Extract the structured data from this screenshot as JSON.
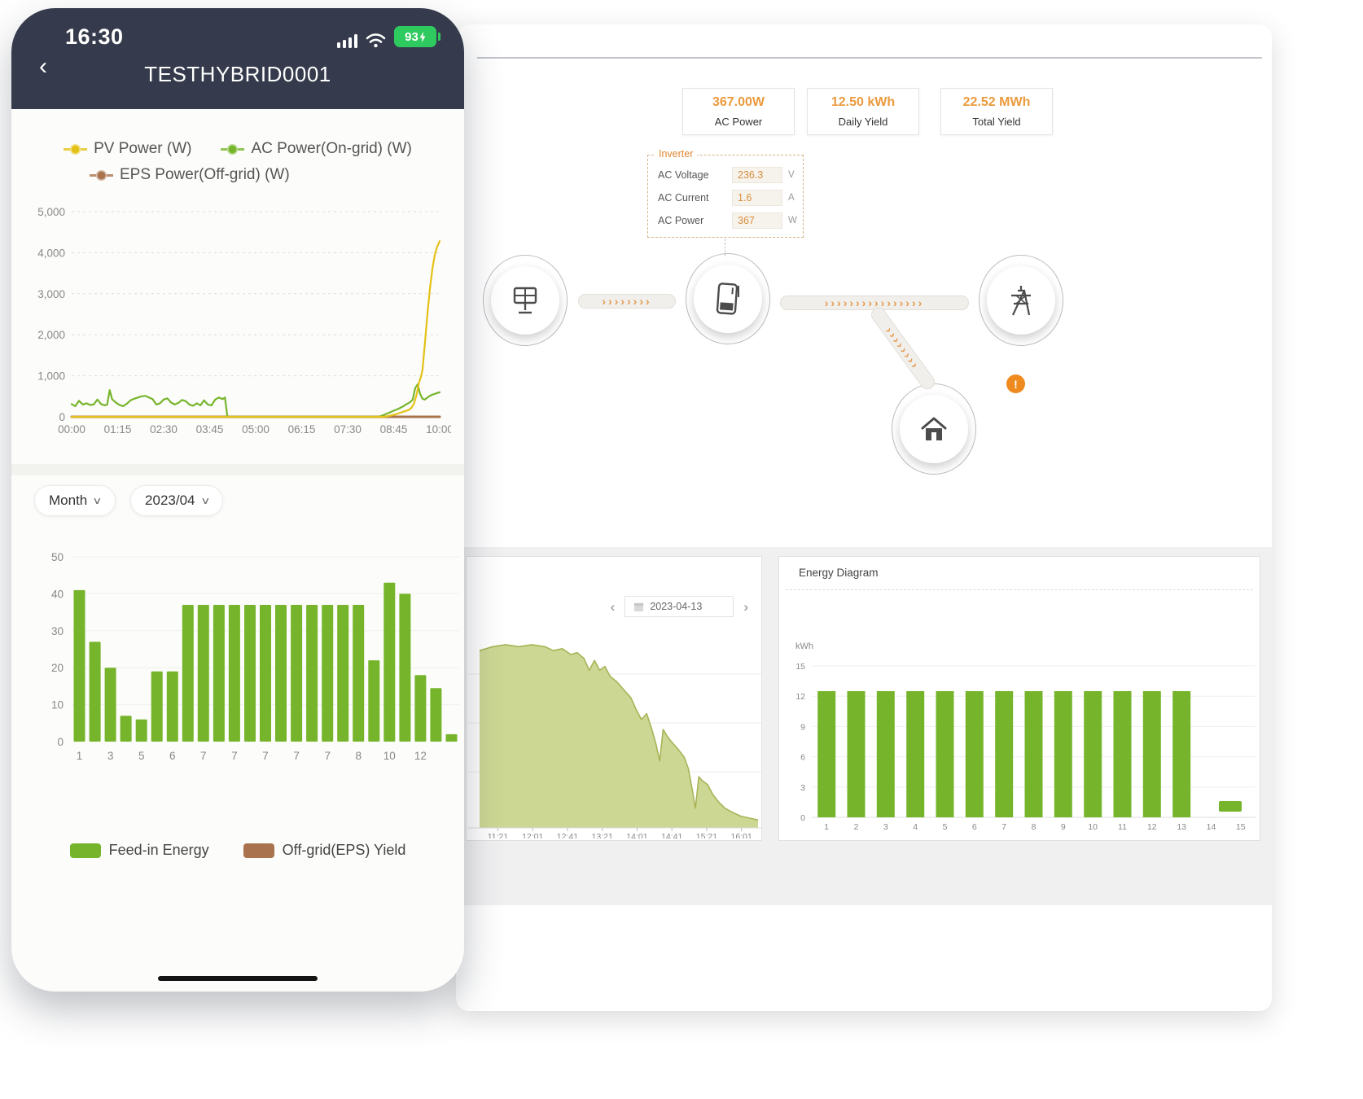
{
  "colors": {
    "green": "#76b52b",
    "yellow": "#e4c117",
    "brown": "#a9734e",
    "orange": "#eb9a3d",
    "navy": "#353b4c",
    "warning": "#ef8a1f",
    "area_fill": "#ccd794",
    "area_stroke": "#a9b356"
  },
  "phone": {
    "status_bar": {
      "time": "16:30",
      "battery": "93"
    },
    "nav": {
      "back": "‹",
      "title": "TESTHYBRID0001"
    },
    "line_legend": [
      {
        "label": "PV Power (W)",
        "color": "#e4c117"
      },
      {
        "label": "AC Power(On-grid) (W)",
        "color": "#76b52b"
      },
      {
        "label": "EPS Power(Off-grid) (W)",
        "color": "#a9734e"
      }
    ],
    "filters": {
      "period": "Month",
      "chevron": "∨",
      "date": "2023/04"
    },
    "bar_legend": [
      {
        "label": "Feed-in Energy",
        "color": "#76b52b"
      },
      {
        "label": "Off-grid(EPS) Yield",
        "color": "#a9734e"
      }
    ]
  },
  "desktop": {
    "stats": [
      {
        "value": "367.00W",
        "label": "AC Power"
      },
      {
        "value": "12.50 kWh",
        "label": "Daily Yield"
      },
      {
        "value": "22.52 MWh",
        "label": "Total Yield"
      }
    ],
    "inverter_panel": {
      "title": "Inverter",
      "rows": [
        {
          "label": "AC Voltage",
          "value": "236.3",
          "unit": "V"
        },
        {
          "label": "AC Current",
          "value": "1.6",
          "unit": "A"
        },
        {
          "label": "AC Power",
          "value": "367",
          "unit": "W"
        }
      ]
    },
    "flow": {
      "warning": "!"
    },
    "daily_card": {
      "prev": "‹",
      "next": "›",
      "date": "2023-04-13"
    },
    "energy_card": {
      "title": "Energy Diagram",
      "unit": "kWh"
    }
  },
  "chart_data": [
    {
      "id": "phone_power_line",
      "type": "line",
      "x_labels": [
        "00:00",
        "01:15",
        "02:30",
        "03:45",
        "05:00",
        "06:15",
        "07:30",
        "08:45",
        "10:00"
      ],
      "x_domain_minutes": [
        0,
        600
      ],
      "y_ticks": [
        "0",
        "1,000",
        "2,000",
        "3,000",
        "4,000",
        "5,000"
      ],
      "ylim": [
        0,
        5000
      ],
      "series": [
        {
          "name": "PV Power (W)",
          "color": "#e4c117",
          "points": [
            [
              0,
              0
            ],
            [
              510,
              0
            ],
            [
              520,
              30
            ],
            [
              528,
              60
            ],
            [
              536,
              100
            ],
            [
              544,
              140
            ],
            [
              550,
              170
            ],
            [
              554,
              220
            ],
            [
              558,
              320
            ],
            [
              562,
              520
            ],
            [
              566,
              820
            ],
            [
              570,
              1000
            ],
            [
              572,
              1150
            ],
            [
              576,
              1800
            ],
            [
              580,
              2500
            ],
            [
              584,
              3100
            ],
            [
              588,
              3600
            ],
            [
              592,
              3950
            ],
            [
              596,
              4150
            ],
            [
              600,
              4280
            ]
          ]
        },
        {
          "name": "AC Power(On-grid) (W)",
          "color": "#76b52b",
          "points": [
            [
              0,
              310
            ],
            [
              6,
              260
            ],
            [
              12,
              390
            ],
            [
              18,
              300
            ],
            [
              24,
              330
            ],
            [
              30,
              290
            ],
            [
              36,
              300
            ],
            [
              42,
              420
            ],
            [
              48,
              310
            ],
            [
              54,
              280
            ],
            [
              58,
              300
            ],
            [
              62,
              650
            ],
            [
              66,
              430
            ],
            [
              72,
              350
            ],
            [
              78,
              290
            ],
            [
              84,
              260
            ],
            [
              90,
              320
            ],
            [
              96,
              400
            ],
            [
              102,
              440
            ],
            [
              108,
              470
            ],
            [
              114,
              500
            ],
            [
              120,
              510
            ],
            [
              126,
              470
            ],
            [
              132,
              430
            ],
            [
              138,
              300
            ],
            [
              144,
              330
            ],
            [
              150,
              420
            ],
            [
              156,
              450
            ],
            [
              162,
              350
            ],
            [
              168,
              300
            ],
            [
              174,
              340
            ],
            [
              180,
              410
            ],
            [
              186,
              380
            ],
            [
              192,
              300
            ],
            [
              198,
              270
            ],
            [
              204,
              330
            ],
            [
              210,
              280
            ],
            [
              216,
              400
            ],
            [
              222,
              300
            ],
            [
              228,
              280
            ],
            [
              234,
              420
            ],
            [
              240,
              470
            ],
            [
              246,
              430
            ],
            [
              250,
              470
            ],
            [
              254,
              0
            ],
            [
              500,
              0
            ],
            [
              508,
              40
            ],
            [
              516,
              90
            ],
            [
              524,
              140
            ],
            [
              532,
              190
            ],
            [
              540,
              250
            ],
            [
              546,
              310
            ],
            [
              552,
              360
            ],
            [
              556,
              420
            ],
            [
              560,
              700
            ],
            [
              564,
              790
            ],
            [
              568,
              560
            ],
            [
              572,
              440
            ],
            [
              576,
              420
            ],
            [
              580,
              470
            ],
            [
              584,
              510
            ],
            [
              588,
              540
            ],
            [
              592,
              560
            ],
            [
              596,
              580
            ],
            [
              600,
              600
            ]
          ]
        },
        {
          "name": "EPS Power(Off-grid) (W)",
          "color": "#a9734e",
          "points": [
            [
              0,
              0
            ],
            [
              600,
              0
            ]
          ]
        }
      ]
    },
    {
      "id": "phone_month_bars",
      "type": "bar",
      "values": [
        41,
        27,
        20,
        7,
        6,
        19,
        19,
        37,
        37,
        37,
        37,
        37,
        37,
        37,
        37,
        37,
        37,
        37,
        37,
        22,
        43,
        40,
        18,
        14.5,
        2
      ],
      "x_tick_labels": [
        "1",
        "3",
        "5",
        "6",
        "7",
        "7",
        "7",
        "7",
        "7",
        "8",
        "10",
        "12"
      ],
      "y_ticks": [
        0,
        10,
        20,
        30,
        40,
        50
      ],
      "ylim": [
        0,
        50
      ],
      "bar_color": "#76b52b",
      "legend": [
        "Feed-in Energy",
        "Off-grid(EPS) Yield"
      ]
    },
    {
      "id": "daily_power_area",
      "type": "area",
      "date": "2023-04-13",
      "x_labels": [
        "11:21",
        "12:01",
        "12:41",
        "13:21",
        "14:01",
        "14:41",
        "15:21",
        "16:01"
      ],
      "x_domain_minutes": [
        0,
        320
      ],
      "y_axis_hidden": true,
      "points_norm": [
        [
          0,
          0.9
        ],
        [
          15,
          0.92
        ],
        [
          30,
          0.93
        ],
        [
          45,
          0.92
        ],
        [
          60,
          0.93
        ],
        [
          75,
          0.92
        ],
        [
          85,
          0.9
        ],
        [
          95,
          0.91
        ],
        [
          105,
          0.88
        ],
        [
          112,
          0.89
        ],
        [
          120,
          0.86
        ],
        [
          126,
          0.8
        ],
        [
          132,
          0.85
        ],
        [
          138,
          0.8
        ],
        [
          144,
          0.82
        ],
        [
          150,
          0.77
        ],
        [
          158,
          0.74
        ],
        [
          166,
          0.7
        ],
        [
          174,
          0.66
        ],
        [
          180,
          0.6
        ],
        [
          186,
          0.55
        ],
        [
          192,
          0.58
        ],
        [
          198,
          0.5
        ],
        [
          203,
          0.42
        ],
        [
          207,
          0.34
        ],
        [
          211,
          0.5
        ],
        [
          215,
          0.47
        ],
        [
          220,
          0.44
        ],
        [
          228,
          0.4
        ],
        [
          235,
          0.36
        ],
        [
          240,
          0.3
        ],
        [
          245,
          0.18
        ],
        [
          248,
          0.1
        ],
        [
          252,
          0.26
        ],
        [
          256,
          0.24
        ],
        [
          262,
          0.22
        ],
        [
          268,
          0.17
        ],
        [
          275,
          0.13
        ],
        [
          282,
          0.1
        ],
        [
          290,
          0.08
        ],
        [
          300,
          0.06
        ],
        [
          310,
          0.05
        ],
        [
          320,
          0.04
        ]
      ],
      "fill": "#ccd794",
      "stroke": "#a9b356"
    },
    {
      "id": "energy_diagram",
      "type": "bar",
      "title": "Energy Diagram",
      "ylabel": "kWh",
      "categories": [
        "1",
        "2",
        "3",
        "4",
        "5",
        "6",
        "7",
        "8",
        "9",
        "10",
        "11",
        "12",
        "13",
        "14",
        "15"
      ],
      "values": [
        12.5,
        12.5,
        12.5,
        12.5,
        12.5,
        12.5,
        12.5,
        12.5,
        12.5,
        12.5,
        12.5,
        12.5,
        12.5,
        null,
        null
      ],
      "y_ticks": [
        0,
        3,
        6,
        9,
        12,
        15
      ],
      "ylim": [
        0,
        15
      ],
      "bar_color": "#76b52b"
    }
  ]
}
